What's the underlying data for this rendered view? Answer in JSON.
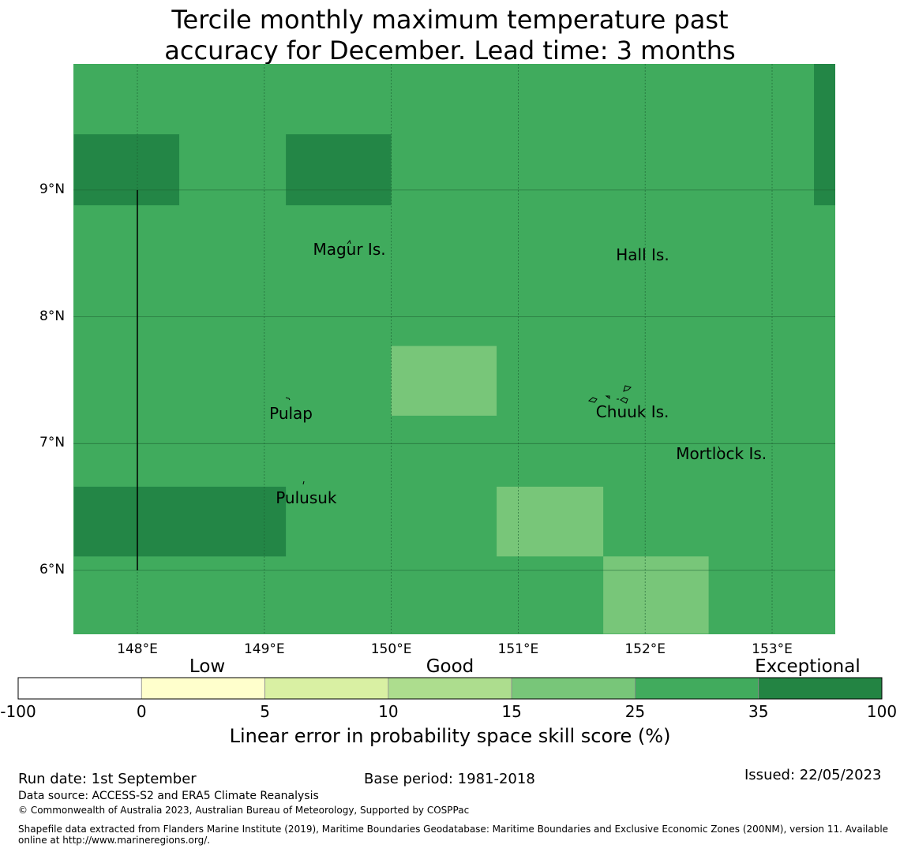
{
  "title": {
    "line1": "Tercile monthly maximum temperature past",
    "line2": "accuracy for December. Lead time: 3 months"
  },
  "map": {
    "lon_range": [
      147.5,
      153.5
    ],
    "lat_range": [
      5.5,
      10.0
    ],
    "grid_lon": [
      148,
      149,
      150,
      151,
      152,
      153
    ],
    "grid_lat": [
      6,
      7,
      8,
      9
    ],
    "x_ticks": [
      "148°E",
      "149°E",
      "150°E",
      "151°E",
      "152°E",
      "153°E"
    ],
    "y_ticks": [
      "9°N",
      "8°N",
      "7°N",
      "6°N"
    ],
    "background_color": "#40ab5d",
    "cells": [
      {
        "lon": [
          147.5,
          148.33
        ],
        "lat": [
          8.88,
          9.44
        ],
        "class": "35-100",
        "color": "#238646"
      },
      {
        "lon": [
          149.17,
          150.0
        ],
        "lat": [
          8.88,
          9.44
        ],
        "class": "35-100",
        "color": "#238646"
      },
      {
        "lon": [
          153.33,
          153.5
        ],
        "lat": [
          8.88,
          10.0
        ],
        "class": "35-100",
        "color": "#238646"
      },
      {
        "lon": [
          150.0,
          150.83
        ],
        "lat": [
          7.22,
          7.77
        ],
        "class": "15-25",
        "color": "#78c679"
      },
      {
        "lon": [
          147.5,
          149.17
        ],
        "lat": [
          6.11,
          6.66
        ],
        "class": "35-100",
        "color": "#238646"
      },
      {
        "lon": [
          150.83,
          151.67
        ],
        "lat": [
          6.11,
          6.66
        ],
        "class": "15-25",
        "color": "#78c679"
      },
      {
        "lon": [
          151.67,
          152.5
        ],
        "lat": [
          5.5,
          6.11
        ],
        "class": "15-25",
        "color": "#78c679"
      }
    ],
    "boundary_line": {
      "lon": 148.0,
      "lat": [
        6.0,
        9.0
      ]
    },
    "places": [
      {
        "name": "Magur Is.",
        "lon": 149.67,
        "lat": 8.53
      },
      {
        "name": "Hall Is.",
        "lon": 151.98,
        "lat": 8.49
      },
      {
        "name": "Pulap",
        "lon": 149.21,
        "lat": 7.24
      },
      {
        "name": "Chuuk Is.",
        "lon": 151.9,
        "lat": 7.25
      },
      {
        "name": "Mortlock Is.",
        "lon": 152.6,
        "lat": 6.92
      },
      {
        "name": "Pulusuk",
        "lon": 149.33,
        "lat": 6.57
      }
    ]
  },
  "colorbar": {
    "categories": [
      {
        "label": "Low",
        "pos": 0.219
      },
      {
        "label": "Good",
        "pos": 0.5
      },
      {
        "label": "Exceptional",
        "pos": 0.914
      }
    ],
    "bins": [
      {
        "from": "-100",
        "to": "0",
        "color": "#ffffff"
      },
      {
        "from": "0",
        "to": "5",
        "color": "#ffffcc"
      },
      {
        "from": "5",
        "to": "10",
        "color": "#d9f0a3"
      },
      {
        "from": "10",
        "to": "15",
        "color": "#addd8e"
      },
      {
        "from": "15",
        "to": "25",
        "color": "#78c679"
      },
      {
        "from": "25",
        "to": "35",
        "color": "#41ab5d"
      },
      {
        "from": "35",
        "to": "100",
        "color": "#238443"
      }
    ],
    "tick_labels": [
      "-100",
      "0",
      "5",
      "10",
      "15",
      "25",
      "35",
      "100"
    ],
    "label": "Linear error in probability space skill score (%)"
  },
  "footer": {
    "run_date": "Run date: 1st September",
    "base_period": "Base period: 1981-2018",
    "issued": "Issued: 22/05/2023",
    "data_source": "Data source: ACCESS-S2 and ERA5 Climate Reanalysis",
    "copyright": "© Commonwealth of Australia 2023, Australian Bureau of Meteorology, Supported by COSPPac",
    "shapefile_line1": "Shapefile data extracted from Flanders Marine Institute (2019), Maritime Boundaries Geodatabase: Maritime Boundaries and Exclusive Economic Zones (200NM), version 11. Available",
    "shapefile_line2": "online at http://www.marineregions.org/."
  }
}
